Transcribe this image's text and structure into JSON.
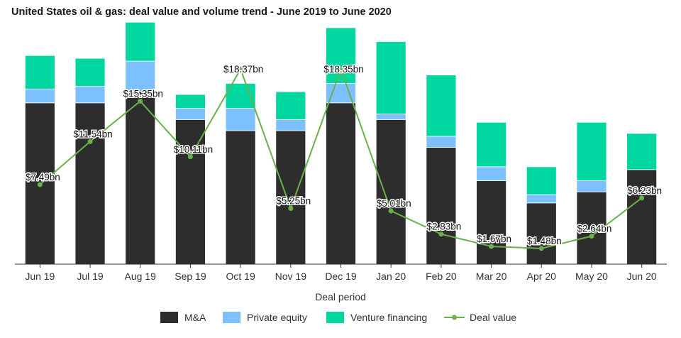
{
  "chart_data": {
    "type": "bar",
    "title": "United States oil & gas: deal value and volume trend - June 2019 to June 2020",
    "xlabel": "Deal period",
    "ylabel": "",
    "stacked": true,
    "categories": [
      "Jun 19",
      "Jul 19",
      "Aug 19",
      "Sep 19",
      "Oct 19",
      "Nov 19",
      "Dec 19",
      "Jan 20",
      "Feb 20",
      "Mar 20",
      "Apr 20",
      "May 20",
      "Jun 20"
    ],
    "bar_ylim": [
      0,
      42
    ],
    "series": [
      {
        "name": "M&A",
        "color": "#2d2d2d",
        "values": [
          29,
          29,
          31,
          26,
          24,
          24,
          29,
          26,
          21,
          15,
          11,
          13,
          17
        ]
      },
      {
        "name": "Private equity",
        "color": "#7cc0ff",
        "values": [
          2.5,
          3,
          5.5,
          2,
          4,
          2,
          3.5,
          1,
          2,
          2.5,
          1.5,
          2,
          0
        ]
      },
      {
        "name": "Venture financing",
        "color": "#00d6a0",
        "values": [
          6,
          5,
          7,
          2.5,
          4.5,
          5,
          10,
          13,
          11,
          8,
          5,
          10.5,
          6.5
        ]
      }
    ],
    "line": {
      "name": "Deal value",
      "color": "#6ab04c",
      "ylim": [
        0,
        22
      ],
      "values": [
        7.49,
        11.54,
        15.35,
        10.11,
        18.37,
        5.25,
        18.35,
        5.01,
        2.83,
        1.67,
        1.48,
        2.64,
        6.23
      ],
      "labels": [
        "$7.49bn",
        "$11.54bn",
        "$15.35bn",
        "$10.11bn",
        "$18.37bn",
        "$5.25bn",
        "$18.35bn",
        "$5.01bn",
        "$2.83bn",
        "$1.67bn",
        "$1.48bn",
        "$2.64bn",
        "$6.23bn"
      ]
    },
    "legend": {
      "placement": "bottom",
      "items": [
        "M&A",
        "Private equity",
        "Venture financing",
        "Deal value"
      ]
    },
    "grid": false
  }
}
